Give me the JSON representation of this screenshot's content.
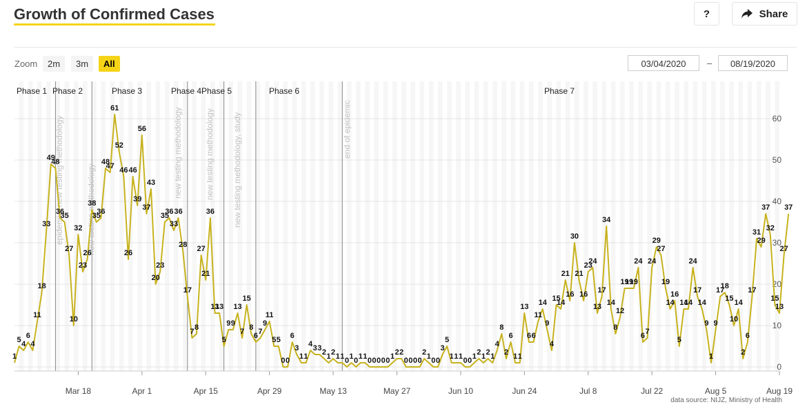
{
  "title": "Growth of Confirmed Cases",
  "buttons": {
    "help": "?",
    "share": "Share"
  },
  "zoom": {
    "label": "Zoom",
    "options": [
      "2m",
      "3m",
      "All"
    ],
    "selected": "All"
  },
  "range": {
    "from": "03/04/2020",
    "to": "08/19/2020",
    "separator": "–"
  },
  "source": "data source: NIJZ, Ministry of Health",
  "colors": {
    "line": "#c7b21d",
    "accent": "#f5d418"
  },
  "chart_data": {
    "type": "line",
    "x_start": "2020-03-04",
    "x_end": "2020-08-19",
    "ylim": [
      0,
      65
    ],
    "y_ticks": [
      0,
      10,
      20,
      30,
      40,
      50,
      60
    ],
    "x_ticks": [
      "Mar 18",
      "Apr 1",
      "Apr 15",
      "Apr 29",
      "May 13",
      "May 27",
      "Jun 10",
      "Jun 24",
      "Jul 8",
      "Jul 22",
      "Aug 5",
      "Aug 19"
    ],
    "values": [
      1,
      5,
      4,
      6,
      4,
      11,
      18,
      33,
      49,
      48,
      36,
      35,
      27,
      10,
      32,
      23,
      26,
      38,
      35,
      36,
      48,
      47,
      61,
      52,
      46,
      26,
      46,
      39,
      56,
      37,
      43,
      20,
      23,
      35,
      36,
      33,
      36,
      28,
      17,
      7,
      8,
      27,
      21,
      36,
      13,
      13,
      5,
      9,
      9,
      13,
      7,
      15,
      8,
      6,
      7,
      9,
      11,
      5,
      5,
      0,
      0,
      6,
      3,
      1,
      1,
      4,
      3,
      3,
      2,
      1,
      2,
      1,
      1,
      0,
      1,
      0,
      1,
      1,
      0,
      0,
      0,
      0,
      0,
      1,
      2,
      2,
      0,
      0,
      0,
      0,
      2,
      1,
      0,
      0,
      3,
      5,
      1,
      1,
      1,
      0,
      0,
      1,
      2,
      1,
      2,
      1,
      4,
      8,
      2,
      6,
      1,
      1,
      13,
      6,
      6,
      11,
      14,
      9,
      4,
      15,
      14,
      21,
      16,
      30,
      21,
      16,
      23,
      24,
      13,
      17,
      34,
      14,
      8,
      12,
      19,
      19,
      19,
      24,
      6,
      7,
      24,
      29,
      27,
      19,
      14,
      16,
      5,
      14,
      14,
      24,
      17,
      14,
      9,
      1,
      9,
      17,
      18,
      15,
      10,
      14,
      2,
      6,
      17,
      31,
      29,
      37,
      32,
      15,
      13,
      27,
      37
    ],
    "phases": [
      {
        "label": "Phase 1",
        "start": "2020-03-04"
      },
      {
        "label": "Phase 2",
        "start": "2020-03-13"
      },
      {
        "label": "Phase 3",
        "start": "2020-03-21"
      },
      {
        "label": "Phase 4",
        "start": "2020-04-11"
      },
      {
        "label": "Phase 5",
        "start": "2020-04-19"
      },
      {
        "label": "Phase 6",
        "start": "2020-04-26"
      },
      {
        "label": "Phase 7",
        "start": "2020-05-15"
      }
    ],
    "annotations": [
      {
        "text": "epidemic, new testing methodology",
        "date": "2020-03-13"
      },
      {
        "text": "new testing methodology",
        "date": "2020-03-21"
      },
      {
        "text": "new testing methodology",
        "date": "2020-04-11"
      },
      {
        "text": "new testing methodology",
        "date": "2020-04-19"
      },
      {
        "text": "new testing methodology, study",
        "date": "2020-04-26"
      },
      {
        "text": "end of epidemic",
        "date": "2020-05-15"
      }
    ]
  }
}
